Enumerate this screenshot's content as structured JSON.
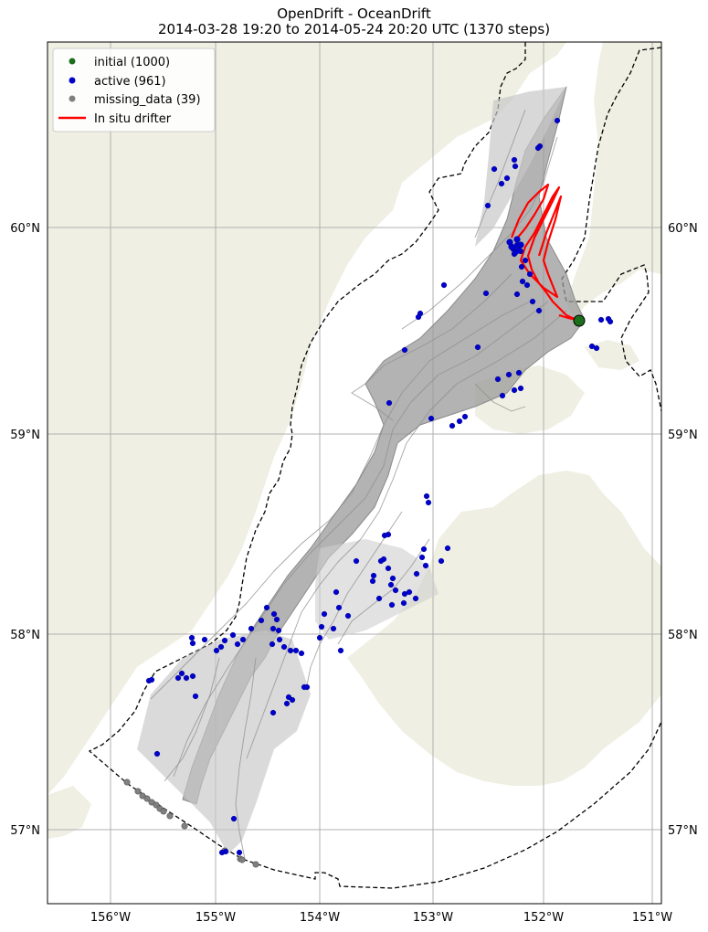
{
  "title": {
    "line1": "OpenDrift - OceanDrift",
    "line2": "2014-03-28 19:20 to 2014-05-24 20:20 UTC (1370 steps)"
  },
  "legend": {
    "items": [
      {
        "label": "initial (1000)",
        "color": "#1b6e1b",
        "kind": "dot"
      },
      {
        "label": "active (961)",
        "color": "#0000cc",
        "kind": "dot"
      },
      {
        "label": "missing_data (39)",
        "color": "#808080",
        "kind": "dot"
      },
      {
        "label": "In situ drifter",
        "color": "#ff0000",
        "kind": "line"
      }
    ]
  },
  "axes": {
    "lat_labels": [
      "60°N",
      "59°N",
      "58°N",
      "57°N"
    ],
    "lon_labels": [
      "156°W",
      "155°W",
      "154°W",
      "153°W",
      "152°W",
      "151°W"
    ]
  },
  "colors": {
    "land": "#efefe3",
    "ocean": "#ffffff",
    "trajectory": "#8a8a8a",
    "grid": "#b0b0b0",
    "boundary": "#000000"
  }
}
